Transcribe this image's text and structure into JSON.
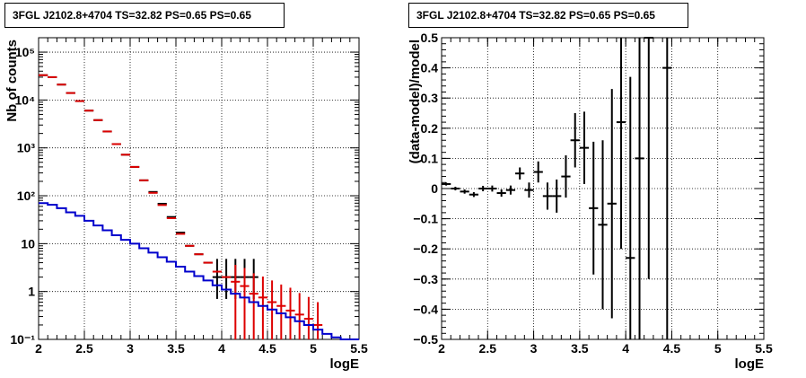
{
  "chart_data": [
    {
      "type": "line",
      "title": "3FGL J2102.8+4704 TS=32.82 PS=0.65 PS=0.65",
      "xlabel": "logE",
      "ylabel": "Nb of counts",
      "xlim": [
        2,
        5.5
      ],
      "ylim": [
        0.1,
        200000
      ],
      "yscale": "log",
      "grid": true,
      "x_ticks": [
        "2",
        "2.5",
        "3",
        "3.5",
        "4",
        "4.5",
        "5",
        "5.5"
      ],
      "y_ticks": [
        "10⁻¹",
        "1",
        "10",
        "10²",
        "10³",
        "10⁴",
        "10⁵"
      ],
      "bin_width": 0.1,
      "series": [
        {
          "color": "#000000",
          "style": "errorbar",
          "x": [
            2.05,
            2.15,
            2.25,
            2.35,
            2.45,
            2.55,
            2.65,
            2.75,
            2.85,
            2.95,
            3.05,
            3.15,
            3.25,
            3.35,
            3.45,
            3.55,
            3.65,
            3.75,
            3.85,
            3.95,
            4.05,
            4.15,
            4.25,
            4.35
          ],
          "y": [
            33000,
            30000,
            21000,
            14000,
            9500,
            6000,
            3800,
            2200,
            1200,
            720,
            400,
            210,
            120,
            68,
            36,
            17,
            9,
            6,
            4,
            2,
            2,
            2,
            2,
            2
          ],
          "err_low": [
            0,
            0,
            0,
            0,
            0,
            0,
            0,
            0,
            0,
            0,
            0,
            0,
            0,
            0,
            0,
            0,
            0,
            0,
            0,
            1.3,
            1.3,
            1.3,
            1.3,
            1.3
          ],
          "err_high": [
            0,
            0,
            0,
            0,
            0,
            0,
            0,
            0,
            0,
            0,
            0,
            0,
            0,
            0,
            0,
            0,
            0,
            0,
            0,
            2.8,
            2.8,
            2.8,
            2.8,
            2.8
          ]
        },
        {
          "color": "#dd0000",
          "style": "errorbar",
          "x": [
            2.05,
            2.15,
            2.25,
            2.35,
            2.45,
            2.55,
            2.65,
            2.75,
            2.85,
            2.95,
            3.05,
            3.15,
            3.25,
            3.35,
            3.45,
            3.55,
            3.65,
            3.75,
            3.85,
            3.95,
            4.05,
            4.15,
            4.25,
            4.35,
            4.45,
            4.55,
            4.65,
            4.75,
            4.85,
            4.95,
            5.05
          ],
          "y": [
            33000,
            30000,
            21000,
            14000,
            9500,
            6000,
            3800,
            2200,
            1200,
            720,
            400,
            210,
            115,
            64,
            34,
            16,
            9,
            6,
            4,
            2.6,
            2,
            1.6,
            1.3,
            0.9,
            0.75,
            0.6,
            0.5,
            0.4,
            0.33,
            0.27,
            0.2
          ],
          "err_low": [
            0,
            0,
            0,
            0,
            0,
            0,
            0,
            0,
            0,
            0,
            0,
            0,
            0,
            0,
            0,
            0,
            0,
            0,
            0,
            0,
            0,
            1.5,
            1.2,
            0.8,
            0.7,
            0.55,
            0.45,
            0.37,
            0.3,
            0.25,
            0.18
          ],
          "err_high": [
            0,
            0,
            0,
            0,
            0,
            0,
            0,
            0,
            0,
            0,
            0,
            0,
            0,
            0,
            0,
            0,
            0,
            0,
            0,
            0,
            0,
            2,
            1.8,
            1.5,
            1.3,
            1.1,
            0.9,
            0.8,
            0.6,
            0.5,
            0.4
          ]
        },
        {
          "color": "#0000cc",
          "style": "step",
          "x": [
            2.0,
            2.1,
            2.2,
            2.3,
            2.4,
            2.5,
            2.6,
            2.7,
            2.8,
            2.9,
            3.0,
            3.1,
            3.2,
            3.3,
            3.4,
            3.5,
            3.6,
            3.7,
            3.8,
            3.9,
            4.0,
            4.1,
            4.2,
            4.3,
            4.4,
            4.5,
            4.6,
            4.7,
            4.8,
            4.9,
            5.0,
            5.1,
            5.2,
            5.3,
            5.4
          ],
          "y": [
            70,
            65,
            55,
            45,
            38,
            30,
            24,
            19,
            15,
            12,
            10,
            8,
            6.5,
            5.2,
            4.2,
            3.3,
            2.6,
            2.1,
            1.7,
            1.35,
            1.1,
            0.9,
            0.75,
            0.6,
            0.5,
            0.42,
            0.35,
            0.29,
            0.24,
            0.2,
            0.16,
            0.13,
            0.11,
            0.1,
            0.1
          ]
        }
      ]
    },
    {
      "type": "scatter",
      "title": "3FGL J2102.8+4704 TS=32.82 PS=0.65 PS=0.65",
      "xlabel": "logE",
      "ylabel": "(data-model)/model",
      "xlim": [
        2,
        5.5
      ],
      "ylim": [
        -0.5,
        0.5
      ],
      "grid": true,
      "x_ticks": [
        "2",
        "2.5",
        "3",
        "3.5",
        "4",
        "4.5",
        "5",
        "5.5"
      ],
      "y_ticks": [
        "−0.5",
        "−0.4",
        "−0.3",
        "−0.2",
        "−0.1",
        "0",
        "0.1",
        "0.2",
        "0.3",
        "0.4",
        "0.5"
      ],
      "bin_width": 0.1,
      "series": [
        {
          "color": "#000000",
          "style": "errorbar",
          "x": [
            2.05,
            2.15,
            2.25,
            2.35,
            2.45,
            2.55,
            2.65,
            2.75,
            2.85,
            2.95,
            3.05,
            3.15,
            3.25,
            3.35,
            3.45,
            3.55,
            3.65,
            3.75,
            3.85,
            3.95,
            4.05,
            4.15,
            4.25,
            4.45
          ],
          "y": [
            0.015,
            0.0,
            -0.01,
            -0.02,
            0.0,
            0.0,
            -0.015,
            -0.005,
            0.05,
            -0.005,
            0.055,
            -0.025,
            -0.025,
            0.04,
            0.16,
            0.135,
            -0.065,
            -0.12,
            -0.05,
            0.22,
            -0.23,
            0.1,
            0.5,
            0.4
          ],
          "err": [
            0.005,
            0.006,
            0.007,
            0.008,
            0.009,
            0.01,
            0.012,
            0.015,
            0.02,
            0.025,
            0.035,
            0.045,
            0.055,
            0.07,
            0.09,
            0.12,
            0.22,
            0.28,
            0.38,
            0.42,
            0.6,
            0.7,
            0.8,
            0.9
          ]
        }
      ]
    }
  ]
}
